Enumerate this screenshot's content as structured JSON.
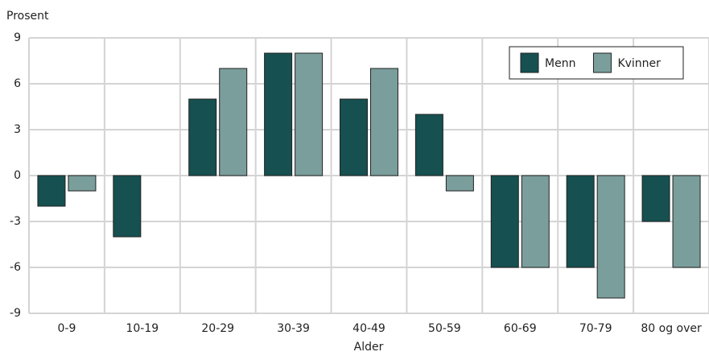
{
  "chart_data": {
    "type": "bar",
    "y_label": "Prosent",
    "x_label": "Alder",
    "categories": [
      "0-9",
      "10-19",
      "20-29",
      "30-39",
      "40-49",
      "50-59",
      "60-69",
      "70-79",
      "80 og over"
    ],
    "series": [
      {
        "name": "Menn",
        "color": "#165050",
        "values": [
          -2,
          -4,
          5,
          8,
          5,
          4,
          -6,
          -6,
          -3
        ]
      },
      {
        "name": "Kvinner",
        "color": "#7a9e9c",
        "values": [
          -1,
          0,
          7,
          8,
          7,
          -1,
          -6,
          -8,
          -6
        ]
      }
    ],
    "ylim": [
      -9,
      9
    ],
    "yticks": [
      -9,
      -6,
      -3,
      0,
      3,
      6,
      9
    ],
    "grid": true,
    "legend": "top-right"
  }
}
